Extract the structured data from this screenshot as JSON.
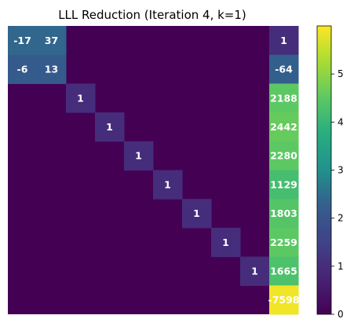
{
  "chart_data": {
    "type": "heatmap",
    "title": "LLL Reduction (Iteration 4, k=1)",
    "colormap": "viridis",
    "color_range": [
      0,
      6
    ],
    "colorbar_ticks": [
      "0",
      "1",
      "2",
      "3",
      "4",
      "5"
    ],
    "rows": 10,
    "cols": 10,
    "cells": [
      {
        "row": 0,
        "col": 0,
        "value": 2.4,
        "label": "-17"
      },
      {
        "row": 0,
        "col": 1,
        "value": 2.4,
        "label": "37"
      },
      {
        "row": 0,
        "col": 9,
        "value": 1.0,
        "label": "1"
      },
      {
        "row": 1,
        "col": 0,
        "value": 2.2,
        "label": "-6"
      },
      {
        "row": 1,
        "col": 1,
        "value": 2.2,
        "label": "13"
      },
      {
        "row": 1,
        "col": 9,
        "value": 2.3,
        "label": "-64"
      },
      {
        "row": 2,
        "col": 2,
        "value": 1.0,
        "label": "1"
      },
      {
        "row": 2,
        "col": 9,
        "value": 4.5,
        "label": "2188"
      },
      {
        "row": 3,
        "col": 3,
        "value": 1.0,
        "label": "1"
      },
      {
        "row": 3,
        "col": 9,
        "value": 4.6,
        "label": "2442"
      },
      {
        "row": 4,
        "col": 4,
        "value": 1.0,
        "label": "1"
      },
      {
        "row": 4,
        "col": 9,
        "value": 4.5,
        "label": "2280"
      },
      {
        "row": 5,
        "col": 5,
        "value": 1.0,
        "label": "1"
      },
      {
        "row": 5,
        "col": 9,
        "value": 4.2,
        "label": "1129"
      },
      {
        "row": 6,
        "col": 6,
        "value": 1.0,
        "label": "1"
      },
      {
        "row": 6,
        "col": 9,
        "value": 4.4,
        "label": "1803"
      },
      {
        "row": 7,
        "col": 7,
        "value": 1.0,
        "label": "1"
      },
      {
        "row": 7,
        "col": 9,
        "value": 4.5,
        "label": "2259"
      },
      {
        "row": 8,
        "col": 8,
        "value": 1.0,
        "label": "1"
      },
      {
        "row": 8,
        "col": 9,
        "value": 4.3,
        "label": "1665"
      },
      {
        "row": 9,
        "col": 9,
        "value": 5.9,
        "label": "-7598"
      }
    ]
  }
}
